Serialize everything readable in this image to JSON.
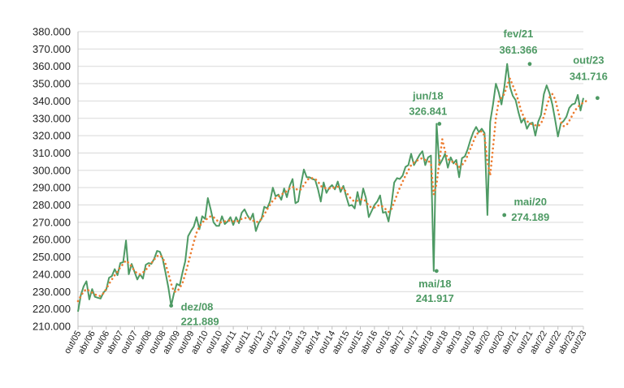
{
  "chart_data": {
    "type": "line",
    "title": "",
    "xlabel": "",
    "ylabel": "",
    "ylim": [
      210000,
      380000
    ],
    "ytick_step": 10000,
    "yticks": [
      "210.000",
      "220.000",
      "230.000",
      "240.000",
      "250.000",
      "260.000",
      "270.000",
      "280.000",
      "290.000",
      "300.000",
      "310.000",
      "320.000",
      "330.000",
      "340.000",
      "350.000",
      "360.000",
      "370.000",
      "380.000"
    ],
    "xticks": [
      "out/05",
      "abr/06",
      "out/06",
      "abr/07",
      "out/07",
      "abr/08",
      "out/08",
      "abr/09",
      "out/09",
      "abr/10",
      "out/10",
      "abr/11",
      "out/11",
      "abr/12",
      "out/12",
      "abr/13",
      "out/13",
      "abr/14",
      "out/14",
      "abr/15",
      "out/15",
      "abr/16",
      "out/16",
      "abr/17",
      "out/17",
      "abr/18",
      "out/18",
      "abr/19",
      "out/19",
      "abr/20",
      "out/20",
      "abr/21",
      "out/21",
      "abr/22",
      "out/22",
      "abr/23",
      "out/23"
    ],
    "grid": true,
    "legend": "none",
    "colors": {
      "actual": "#4e9a64",
      "trend": "#ed7d31",
      "annotation": "#4e9a64"
    },
    "series": [
      {
        "style": "solid",
        "values": [
          218500,
          228000,
          233000,
          236000,
          225500,
          231500,
          227000,
          226500,
          226000,
          229500,
          231000,
          238000,
          239000,
          243000,
          239500,
          246500,
          247000,
          259500,
          240000,
          246000,
          241500,
          237000,
          240000,
          237500,
          245500,
          246500,
          246000,
          249000,
          253500,
          253000,
          249000,
          241000,
          232500,
          221889,
          229000,
          234500,
          233500,
          241000,
          247500,
          262000,
          265000,
          267500,
          273000,
          266000,
          273500,
          272000,
          284000,
          277500,
          270000,
          268000,
          268000,
          273500,
          269000,
          270500,
          273000,
          268500,
          273000,
          269500,
          275500,
          277500,
          274000,
          271500,
          275000,
          265000,
          269500,
          272000,
          279000,
          278000,
          282000,
          290000,
          285000,
          286000,
          283000,
          289500,
          284500,
          291000,
          295000,
          281000,
          282000,
          292000,
          300500,
          296000,
          296000,
          295000,
          294500,
          289000,
          282000,
          293000,
          287000,
          290000,
          291500,
          289000,
          293500,
          287500,
          291000,
          285000,
          279500,
          280000,
          278000,
          287500,
          280000,
          289500,
          284000,
          273000,
          276500,
          280000,
          282000,
          285500,
          275500,
          276000,
          270500,
          280000,
          293000,
          295500,
          295000,
          297000,
          302000,
          303000,
          309500,
          303000,
          306000,
          309000,
          311000,
          303000,
          307500,
          308500,
          241917,
          326841,
          303000,
          306000,
          309500,
          301500,
          307500,
          304000,
          306000,
          296000,
          307000,
          308000,
          312000,
          317500,
          322000,
          325000,
          322000,
          324000,
          321500,
          274189,
          328000,
          338000,
          350000,
          345000,
          338000,
          348000,
          361366,
          348000,
          343000,
          340500,
          333500,
          327500,
          330000,
          324000,
          327000,
          327500,
          320000,
          328000,
          332000,
          344000,
          349000,
          344500,
          338000,
          329000,
          319500,
          327000,
          328500,
          331000,
          336000,
          338000,
          338500,
          343500,
          334500,
          341716
        ]
      },
      {
        "style": "dotted",
        "values": [
          224500,
          227500,
          230000,
          231500,
          230500,
          229500,
          228500,
          227500,
          227500,
          229000,
          231500,
          234500,
          237000,
          239500,
          241500,
          244000,
          246000,
          248000,
          246500,
          244500,
          242000,
          240500,
          240000,
          241000,
          242500,
          244500,
          246500,
          248500,
          250500,
          251000,
          249500,
          246000,
          240500,
          234500,
          230000,
          230000,
          232000,
          235000,
          240000,
          246000,
          252500,
          258500,
          264000,
          267500,
          270000,
          271000,
          272500,
          273500,
          273000,
          271500,
          270000,
          270000,
          270500,
          271000,
          271000,
          270500,
          270500,
          271000,
          272000,
          272500,
          272500,
          272000,
          271000,
          270000,
          270500,
          272000,
          274500,
          277500,
          280000,
          282500,
          284000,
          285000,
          286000,
          287000,
          288000,
          289500,
          290500,
          289500,
          288500,
          289000,
          291500,
          294000,
          295500,
          295500,
          295000,
          293500,
          291000,
          290000,
          289500,
          289500,
          290000,
          290000,
          290500,
          290000,
          289500,
          287500,
          285000,
          283000,
          282000,
          282500,
          283000,
          283500,
          282000,
          279500,
          278500,
          278500,
          279500,
          280000,
          279000,
          277500,
          276000,
          277500,
          281500,
          286000,
          290000,
          293500,
          297000,
          300000,
          303000,
          304500,
          305500,
          306500,
          307000,
          306000,
          305500,
          304000,
          286000,
          292000,
          305000,
          318000,
          311000,
          306500,
          305500,
          304500,
          303500,
          302000,
          303000,
          305000,
          308500,
          312500,
          316500,
          320500,
          322000,
          322500,
          320000,
          305000,
          297000,
          313000,
          330000,
          340000,
          342000,
          344000,
          349000,
          353000,
          349000,
          345000,
          340000,
          334000,
          330500,
          328500,
          327000,
          326500,
          326000,
          325500,
          327000,
          331000,
          337000,
          342000,
          344000,
          341000,
          334500,
          328000,
          325500,
          326000,
          328500,
          331500,
          334500,
          336500,
          338000,
          339000,
          340000
        ]
      }
    ],
    "annotations": [
      {
        "label": "dez/08",
        "value": "221.889",
        "index": 33
      },
      {
        "label": "mai/18",
        "value": "241.917",
        "index": 127
      },
      {
        "label": "jun/18",
        "value": "326.841",
        "index": 128
      },
      {
        "label": "mai/20",
        "value": "274.189",
        "index": 151
      },
      {
        "label": "fev/21",
        "value": "361.366",
        "index": 160
      },
      {
        "label": "out/23",
        "value": "341.716",
        "index": 184
      }
    ]
  }
}
